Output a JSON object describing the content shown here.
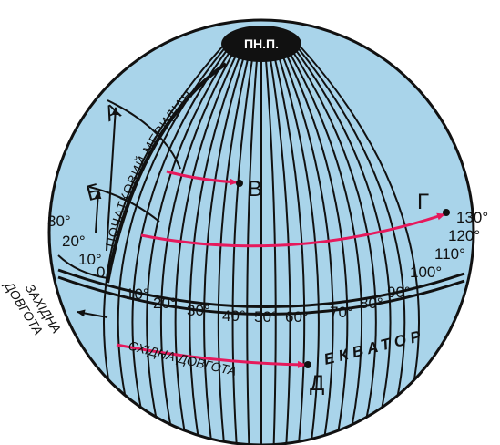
{
  "colors": {
    "globe_fill": "#a9d4ea",
    "grid_line": "#111111",
    "arrow": "#e6195c"
  },
  "north_pole": {
    "label": "ПН.П."
  },
  "equator": {
    "label": "ЕКВАТОР"
  },
  "prime_meridian": {
    "label": "ПОЧАТКОВИЙ МЕРИДІАН"
  },
  "west_longitude": {
    "line1": "ЗАХІДНА",
    "line2": "ДОВГОТА"
  },
  "east_longitude": {
    "label": "СХІДНА ДОВГОТА"
  },
  "points": {
    "A": "А",
    "B": "Б",
    "V": "В",
    "G": "Г",
    "D": "Д"
  },
  "latitude_labels": [
    "30°",
    "20°",
    "10°",
    "0"
  ],
  "equator_longitude_labels": [
    "10°",
    "20°",
    "30°",
    "40°",
    "50°",
    "60°",
    "70°",
    "80°",
    "90°"
  ],
  "right_longitude_labels": [
    "100°",
    "110°",
    "120°",
    "130°"
  ]
}
